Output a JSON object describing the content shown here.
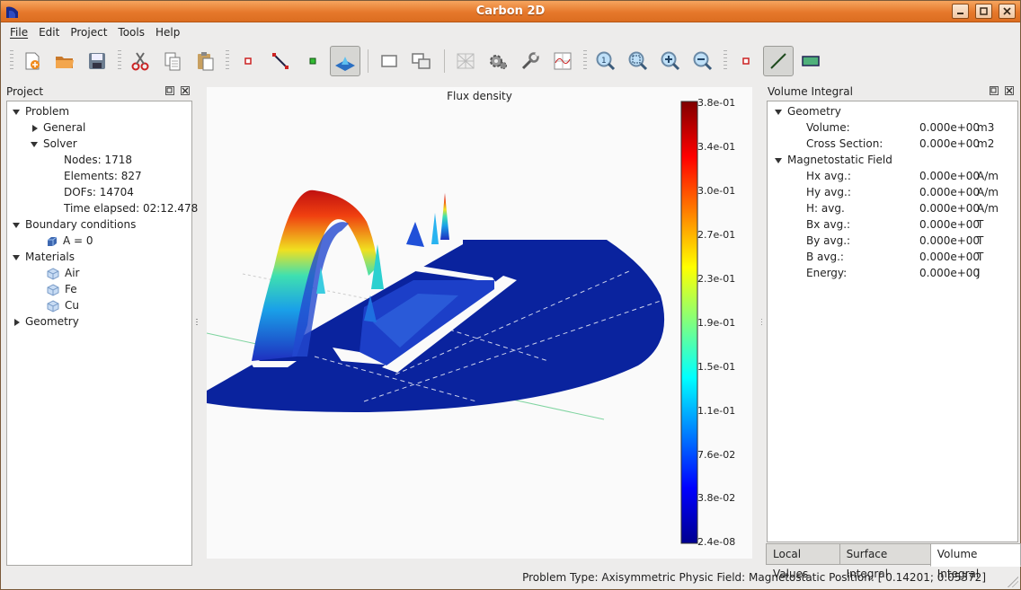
{
  "window": {
    "title": "Carbon 2D"
  },
  "menu": [
    "File",
    "Edit",
    "Project",
    "Tools",
    "Help"
  ],
  "menu_underline": [
    "F",
    "E",
    "P",
    "",
    "H"
  ],
  "project_panel": {
    "title": "Project",
    "tree": {
      "problem": "Problem",
      "general": "General",
      "solver": "Solver",
      "nodes": "Nodes: 1718",
      "elements": "Elements: 827",
      "dofs": "DOFs: 14704",
      "time": "Time elapsed: 02:12.478",
      "boundary": "Boundary conditions",
      "boundary_item": "A = 0",
      "materials": "Materials",
      "mat_air": "Air",
      "mat_fe": "Fe",
      "mat_cu": "Cu",
      "geometry": "Geometry"
    }
  },
  "view": {
    "title": "Flux density",
    "colorbar_labels": [
      "3.8e-01",
      "3.4e-01",
      "3.0e-01",
      "2.7e-01",
      "2.3e-01",
      "1.9e-01",
      "1.5e-01",
      "1.1e-01",
      "7.6e-02",
      "3.8e-02",
      "2.4e-08"
    ]
  },
  "volume_panel": {
    "title": "Volume Integral",
    "geometry": "Geometry",
    "volume_label": "Volume:",
    "volume_value": "0.000e+00",
    "volume_unit": "m3",
    "cross_label": "Cross Section:",
    "cross_value": "0.000e+00",
    "cross_unit": "m2",
    "field": "Magnetostatic Field",
    "rows": [
      {
        "label": "Hx avg.:",
        "value": "0.000e+00",
        "unit": "A/m"
      },
      {
        "label": "Hy avg.:",
        "value": "0.000e+00",
        "unit": "A/m"
      },
      {
        "label": "H: avg.",
        "value": "0.000e+00",
        "unit": "A/m"
      },
      {
        "label": "Bx avg.:",
        "value": "0.000e+00",
        "unit": "T"
      },
      {
        "label": "By avg.:",
        "value": "0.000e+00",
        "unit": "T"
      },
      {
        "label": "B avg.:",
        "value": "0.000e+00",
        "unit": "T"
      },
      {
        "label": "Energy:",
        "value": "0.000e+00",
        "unit": "J"
      }
    ]
  },
  "tabs": [
    "Local Values",
    "Surface Integral",
    "Volume Integral"
  ],
  "status": "Problem Type: Axisymmetric  Physic Field: Magnetostatic  Position: [ 0.14201;  0.05372]",
  "icons": [
    "new-icon",
    "open-icon",
    "save-icon",
    "cut-icon",
    "copy-icon",
    "paste-icon",
    "node-icon",
    "edge-icon",
    "label-icon",
    "view3d-icon",
    "rectangle-icon",
    "move-icon",
    "mesh-icon",
    "solve-icon",
    "wrench-icon",
    "chart-icon",
    "zoom-best-icon",
    "zoom-region-icon",
    "zoom-in-icon",
    "zoom-out-icon",
    "point-icon",
    "line-icon",
    "surface-icon"
  ]
}
